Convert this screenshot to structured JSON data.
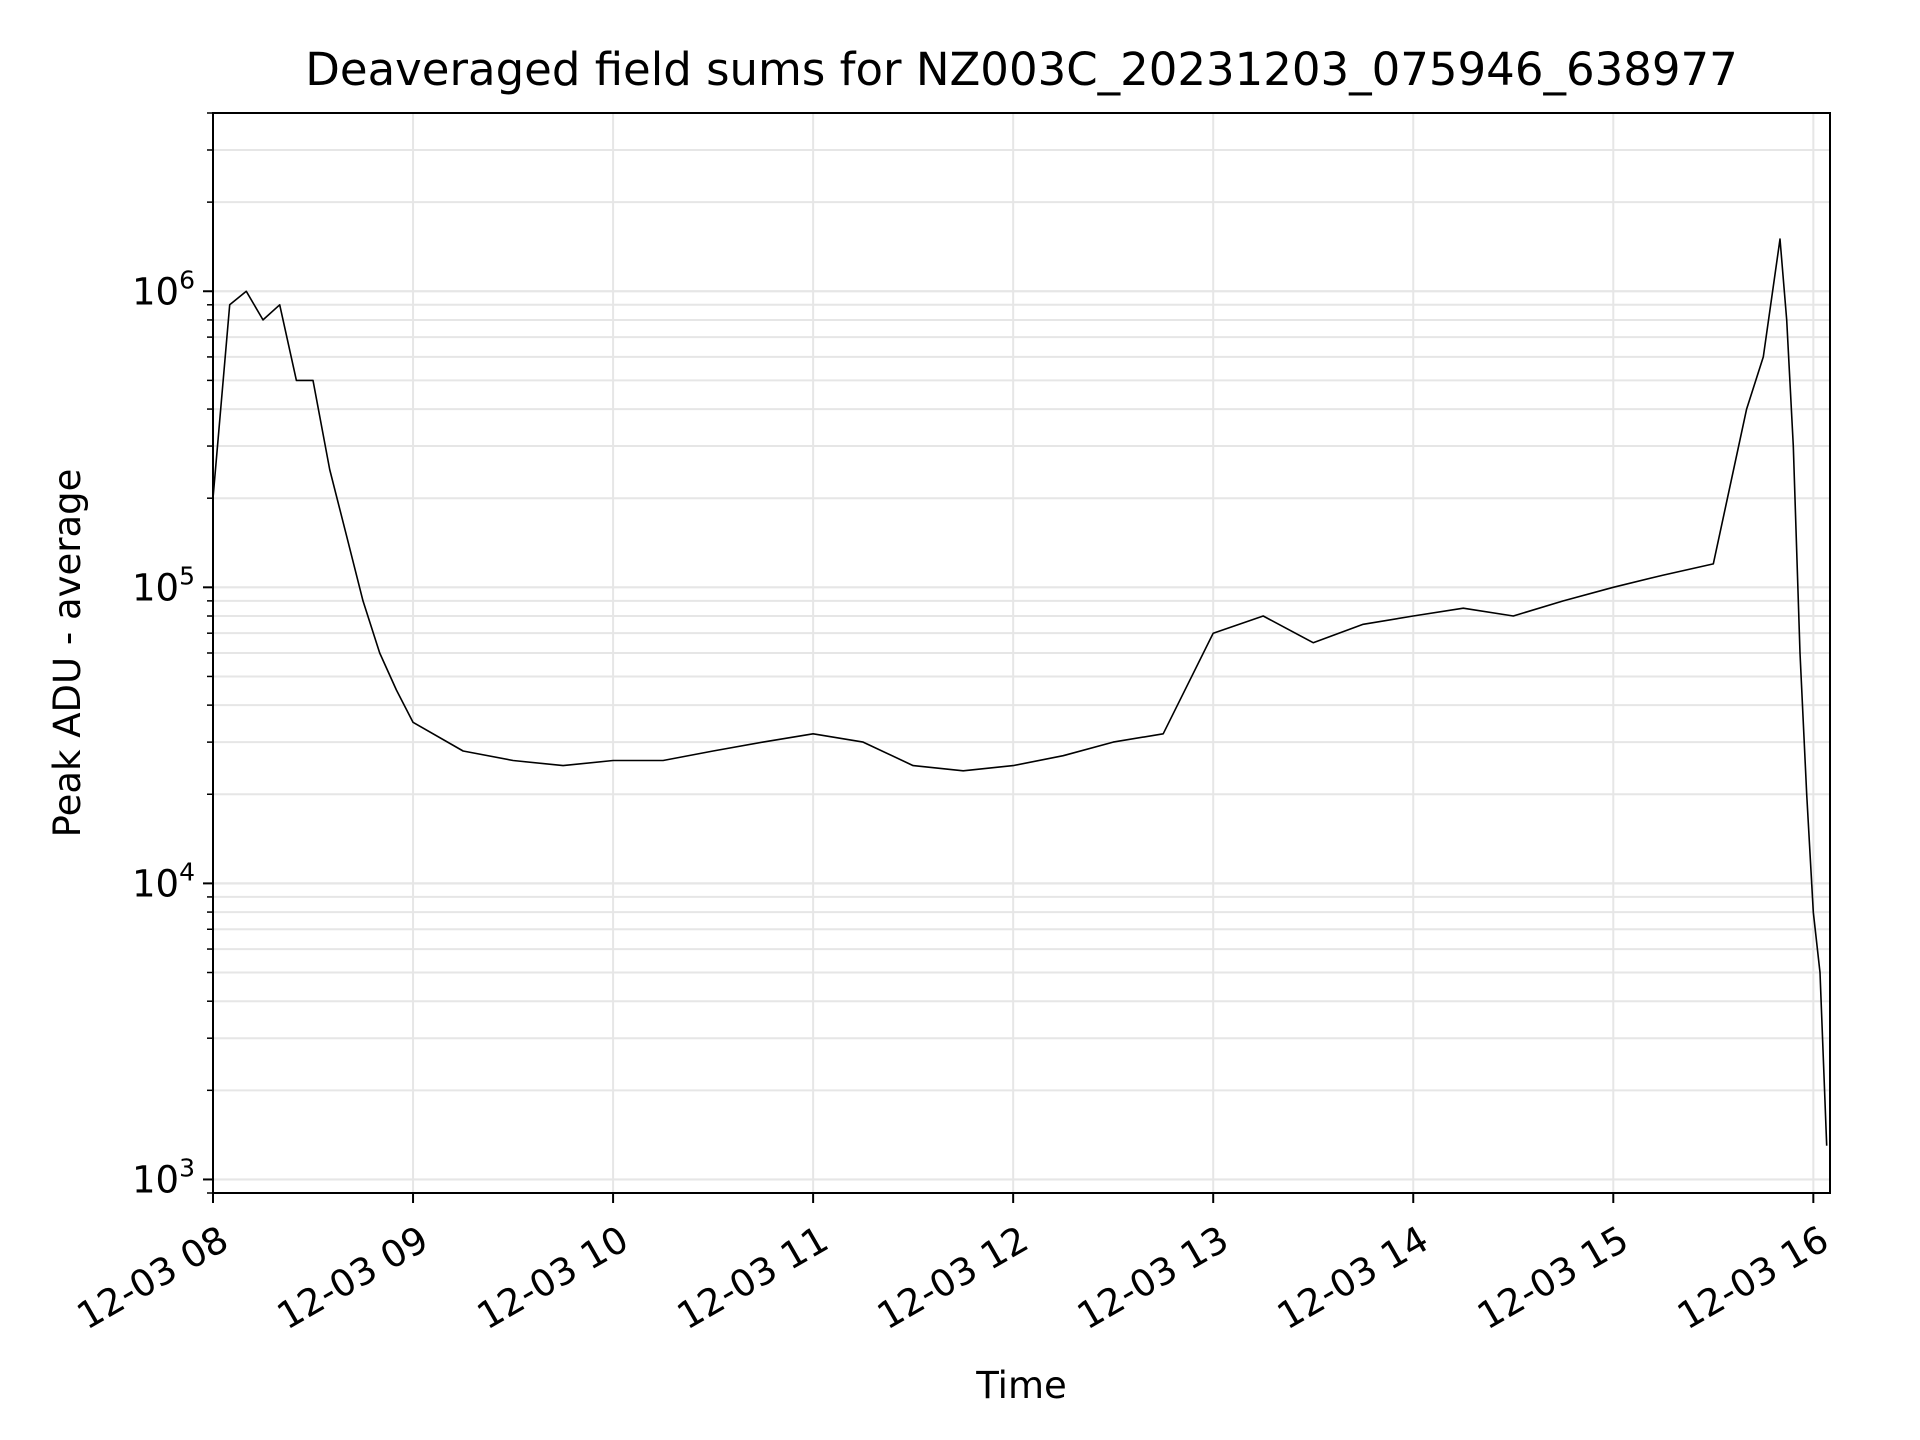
{
  "chart_data": {
    "type": "line",
    "title": "Deaveraged field sums for NZ003C_20231203_075946_638977",
    "xlabel": "Time",
    "ylabel": "Peak ADU - average",
    "y_scale": "log",
    "xlim": [
      "2023-12-03 08:00",
      "2023-12-03 16:05"
    ],
    "ylim": [
      900,
      4000000
    ],
    "x_tick_labels": [
      "12-03 08",
      "12-03 09",
      "12-03 10",
      "12-03 11",
      "12-03 12",
      "12-03 13",
      "12-03 14",
      "12-03 15",
      "12-03 16"
    ],
    "x_ticks": [
      "2023-12-03 08:00",
      "2023-12-03 09:00",
      "2023-12-03 10:00",
      "2023-12-03 11:00",
      "2023-12-03 12:00",
      "2023-12-03 13:00",
      "2023-12-03 14:00",
      "2023-12-03 15:00",
      "2023-12-03 16:00"
    ],
    "y_ticks": [
      {
        "value": 1000,
        "base": "10",
        "exp": "3"
      },
      {
        "value": 10000,
        "base": "10",
        "exp": "4"
      },
      {
        "value": 100000,
        "base": "10",
        "exp": "5"
      },
      {
        "value": 1000000,
        "base": "10",
        "exp": "6"
      }
    ],
    "grid": true,
    "line_color": "#000000",
    "grid_color": "#e6e6e6",
    "series": [
      {
        "x": [
          "2023-12-03 08:00",
          "2023-12-03 08:05",
          "2023-12-03 08:10",
          "2023-12-03 08:15",
          "2023-12-03 08:20",
          "2023-12-03 08:25",
          "2023-12-03 08:30",
          "2023-12-03 08:35",
          "2023-12-03 08:40",
          "2023-12-03 08:45",
          "2023-12-03 08:50",
          "2023-12-03 08:55",
          "2023-12-03 09:00",
          "2023-12-03 09:15",
          "2023-12-03 09:30",
          "2023-12-03 09:45",
          "2023-12-03 10:00",
          "2023-12-03 10:15",
          "2023-12-03 10:30",
          "2023-12-03 10:45",
          "2023-12-03 11:00",
          "2023-12-03 11:15",
          "2023-12-03 11:30",
          "2023-12-03 11:45",
          "2023-12-03 12:00",
          "2023-12-03 12:15",
          "2023-12-03 12:30",
          "2023-12-03 12:45",
          "2023-12-03 13:00",
          "2023-12-03 13:15",
          "2023-12-03 13:30",
          "2023-12-03 13:45",
          "2023-12-03 14:00",
          "2023-12-03 14:15",
          "2023-12-03 14:30",
          "2023-12-03 14:45",
          "2023-12-03 15:00",
          "2023-12-03 15:15",
          "2023-12-03 15:30",
          "2023-12-03 15:40",
          "2023-12-03 15:45",
          "2023-12-03 15:50",
          "2023-12-03 15:52",
          "2023-12-03 15:54",
          "2023-12-03 15:56",
          "2023-12-03 15:58",
          "2023-12-03 16:00",
          "2023-12-03 16:02",
          "2023-12-03 16:04"
        ],
        "y": [
          200000,
          900000,
          1000000,
          800000,
          900000,
          500000,
          500000,
          250000,
          150000,
          90000,
          60000,
          45000,
          35000,
          28000,
          26000,
          25000,
          26000,
          26000,
          28000,
          30000,
          32000,
          30000,
          25000,
          24000,
          25000,
          27000,
          30000,
          32000,
          70000,
          80000,
          65000,
          75000,
          80000,
          85000,
          80000,
          90000,
          100000,
          110000,
          120000,
          400000,
          600000,
          1500000,
          800000,
          300000,
          60000,
          20000,
          8000,
          5000,
          1300
        ]
      }
    ]
  }
}
